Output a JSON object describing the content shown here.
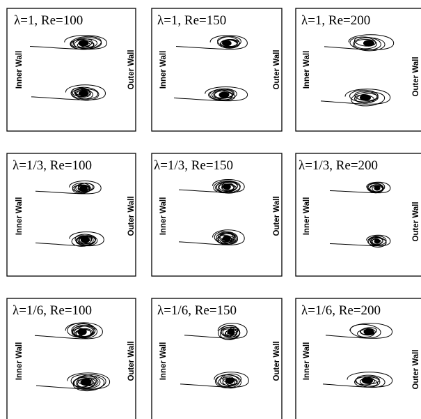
{
  "panels": [
    {
      "title": "λ=1, Re=100"
    },
    {
      "title": "λ=1, Re=150"
    },
    {
      "title": "λ=1, Re=200"
    },
    {
      "title": "λ=1/3, Re=100"
    },
    {
      "title": "λ=1/3, Re=150"
    },
    {
      "title": "λ=1/3, Re=200"
    },
    {
      "title": "λ=1/6, Re=100"
    },
    {
      "title": "λ=1/6, Re=150"
    },
    {
      "title": "λ=1/6, Re=200"
    }
  ],
  "labels": {
    "inner_wall": "Inner Wall",
    "outer_wall": "Outer Wall"
  }
}
